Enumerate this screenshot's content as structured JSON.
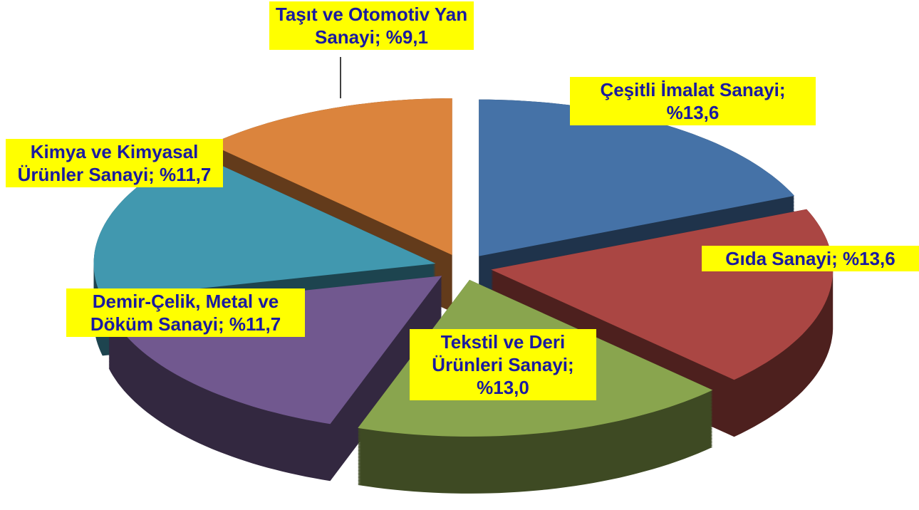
{
  "chart_data": {
    "type": "pie3d",
    "labels": [
      "Çeşitli İmalat Sanayi; %13,6",
      "Gıda Sanayi; %13,6",
      "Tekstil ve Deri Ürünleri Sanayi; %13,0",
      "Demir-Çelik, Metal ve Döküm Sanayi; %11,7",
      "Kimya ve Kimyasal Ürünler Sanayi; %11,7",
      "Taşıt ve Otomotiv Yan Sanayi; %9,1"
    ],
    "values": [
      13.6,
      13.6,
      13.0,
      11.7,
      11.7,
      9.1
    ],
    "colors": [
      "#4572a7",
      "#aa4643",
      "#89a54e",
      "#71588f",
      "#4198af",
      "#db843d"
    ]
  }
}
